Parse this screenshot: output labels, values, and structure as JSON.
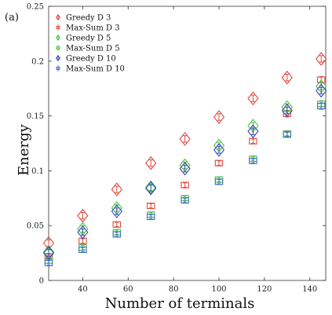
{
  "panel_label": "(a)",
  "chart_data": {
    "type": "scatter",
    "xlabel": "Number of terminals",
    "ylabel": "Energy",
    "xlim": [
      25,
      147
    ],
    "ylim": [
      0,
      0.25
    ],
    "x_ticks": [
      40,
      60,
      80,
      100,
      120,
      140
    ],
    "x_tick_labels": [
      "40",
      "60",
      "80",
      "100",
      "120",
      "140"
    ],
    "y_ticks": [
      0,
      0.05,
      0.1,
      0.15,
      0.2,
      0.25
    ],
    "y_tick_labels": [
      "0",
      "0.05",
      "0.1",
      "0.15",
      "0.2",
      "0.25"
    ],
    "legend_position": "top-left",
    "series": [
      {
        "name": "Greedy D 3",
        "marker": "diamond",
        "color": "#e0493f",
        "x": [
          25,
          40,
          55,
          70,
          85,
          100,
          115,
          130,
          145
        ],
        "y": [
          0.034,
          0.059,
          0.083,
          0.107,
          0.129,
          0.149,
          0.166,
          0.185,
          0.202
        ],
        "err": [
          0.003,
          0.003,
          0.003,
          0.003,
          0.003,
          0.003,
          0.003,
          0.003,
          0.003
        ]
      },
      {
        "name": "Max-Sum D 3",
        "marker": "square",
        "color": "#e0493f",
        "x": [
          25,
          40,
          55,
          70,
          85,
          100,
          115,
          130,
          145
        ],
        "y": [
          0.022,
          0.036,
          0.051,
          0.068,
          0.087,
          0.107,
          0.127,
          0.152,
          0.183
        ],
        "err": [
          0.002,
          0.002,
          0.002,
          0.002,
          0.002,
          0.002,
          0.002,
          0.003,
          0.003
        ]
      },
      {
        "name": "Greedy D 5",
        "marker": "diamond",
        "color": "#4fc04a",
        "x": [
          25,
          40,
          55,
          70,
          85,
          100,
          115,
          130,
          145
        ],
        "y": [
          0.026,
          0.047,
          0.066,
          0.085,
          0.105,
          0.123,
          0.141,
          0.158,
          0.177
        ],
        "err": [
          0.003,
          0.003,
          0.003,
          0.003,
          0.003,
          0.003,
          0.003,
          0.003,
          0.003
        ]
      },
      {
        "name": "Max-Sum D 5",
        "marker": "square",
        "color": "#4fc04a",
        "x": [
          25,
          40,
          55,
          70,
          85,
          100,
          115,
          130,
          145
        ],
        "y": [
          0.018,
          0.03,
          0.044,
          0.06,
          0.075,
          0.092,
          0.111,
          0.134,
          0.161
        ],
        "err": [
          0.002,
          0.002,
          0.002,
          0.002,
          0.002,
          0.002,
          0.002,
          0.002,
          0.003
        ]
      },
      {
        "name": "Greedy D 10",
        "marker": "diamond",
        "color": "#3a4bb5",
        "x": [
          25,
          40,
          55,
          70,
          85,
          100,
          115,
          130,
          145
        ],
        "y": [
          0.025,
          0.044,
          0.063,
          0.084,
          0.102,
          0.119,
          0.136,
          0.155,
          0.173
        ],
        "err": [
          0.003,
          0.003,
          0.003,
          0.003,
          0.003,
          0.003,
          0.003,
          0.003,
          0.003
        ]
      },
      {
        "name": "Max-Sum D 10",
        "marker": "square",
        "color": "#3f6fc6",
        "x": [
          25,
          40,
          55,
          70,
          85,
          100,
          115,
          130,
          145
        ],
        "y": [
          0.016,
          0.028,
          0.042,
          0.058,
          0.073,
          0.09,
          0.109,
          0.133,
          0.159
        ],
        "err": [
          0.002,
          0.002,
          0.002,
          0.002,
          0.002,
          0.002,
          0.002,
          0.002,
          0.003
        ]
      }
    ]
  }
}
